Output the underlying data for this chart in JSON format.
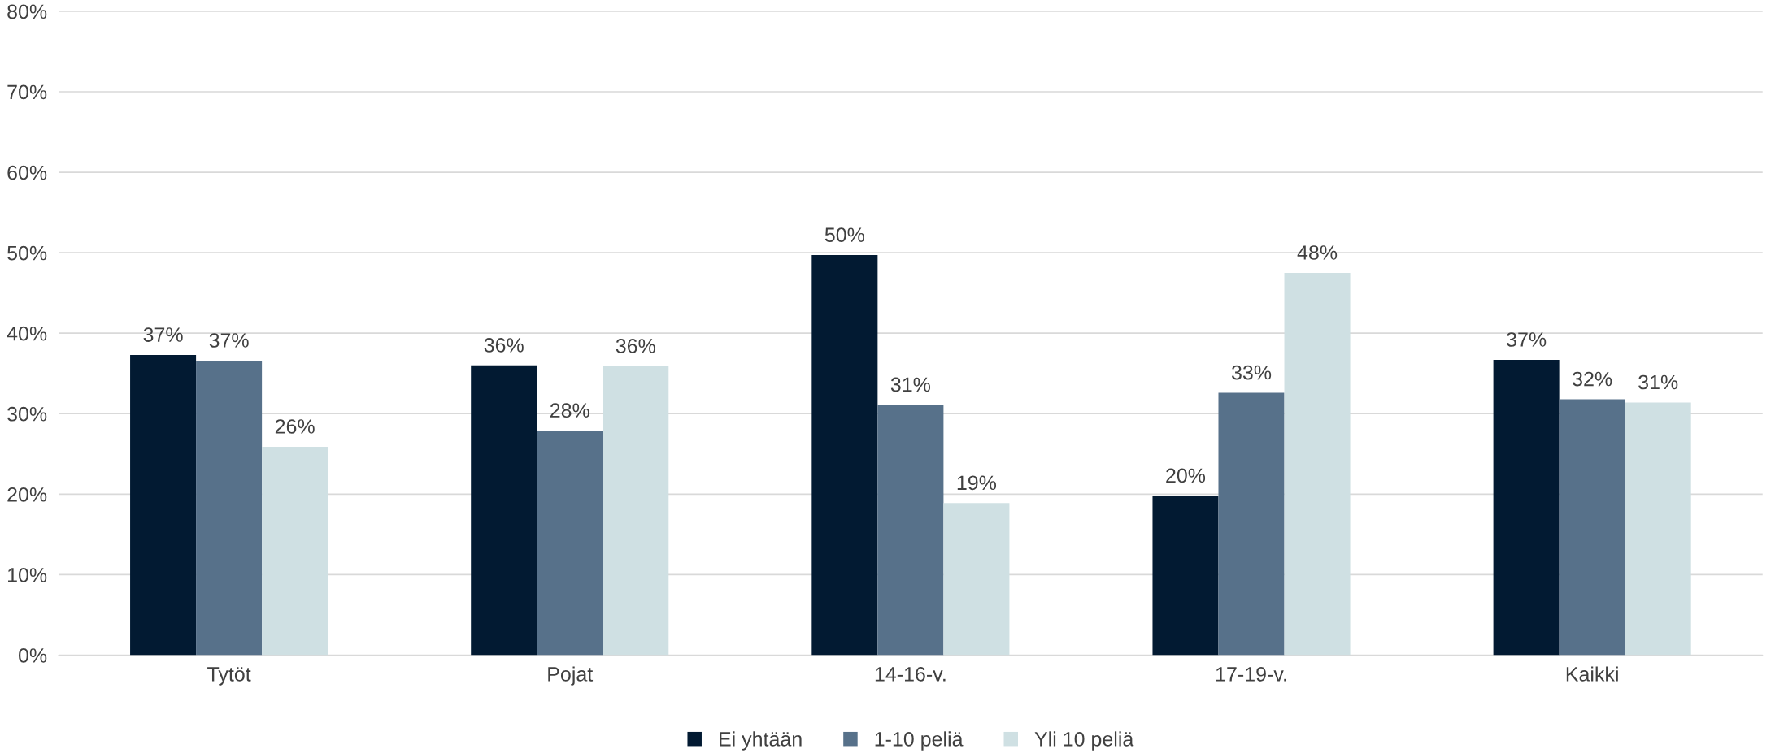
{
  "chart_data": {
    "type": "bar",
    "categories": [
      "Tytöt",
      "Pojat",
      "14-16-v.",
      "17-19-v.",
      "Kaikki"
    ],
    "series": [
      {
        "name": "Ei yhtään",
        "color": "#021a32",
        "values": [
          37.3,
          36.0,
          49.7,
          19.8,
          36.7
        ],
        "value_labels": [
          "37%",
          "36%",
          "50%",
          "20%",
          "37%"
        ]
      },
      {
        "name": "1-10 peliä",
        "color": "#57718a",
        "values": [
          36.6,
          27.9,
          31.1,
          32.6,
          31.8
        ],
        "value_labels": [
          "37%",
          "28%",
          "31%",
          "33%",
          "32%"
        ]
      },
      {
        "name": "Yli 10 peliä",
        "color": "#cfe0e3",
        "values": [
          25.9,
          35.9,
          18.9,
          47.5,
          31.4
        ],
        "value_labels": [
          "26%",
          "36%",
          "19%",
          "48%",
          "31%"
        ]
      }
    ],
    "ylim": [
      0,
      80
    ],
    "yticks": [
      {
        "value": 0,
        "label": "0%"
      },
      {
        "value": 10,
        "label": "10%"
      },
      {
        "value": 20,
        "label": "20%"
      },
      {
        "value": 30,
        "label": "30%"
      },
      {
        "value": 40,
        "label": "40%"
      },
      {
        "value": 50,
        "label": "50%"
      },
      {
        "value": 60,
        "label": "60%"
      },
      {
        "value": 70,
        "label": "70%"
      },
      {
        "value": 80,
        "label": "80%"
      }
    ],
    "grid": "y",
    "legend": "bottom"
  }
}
